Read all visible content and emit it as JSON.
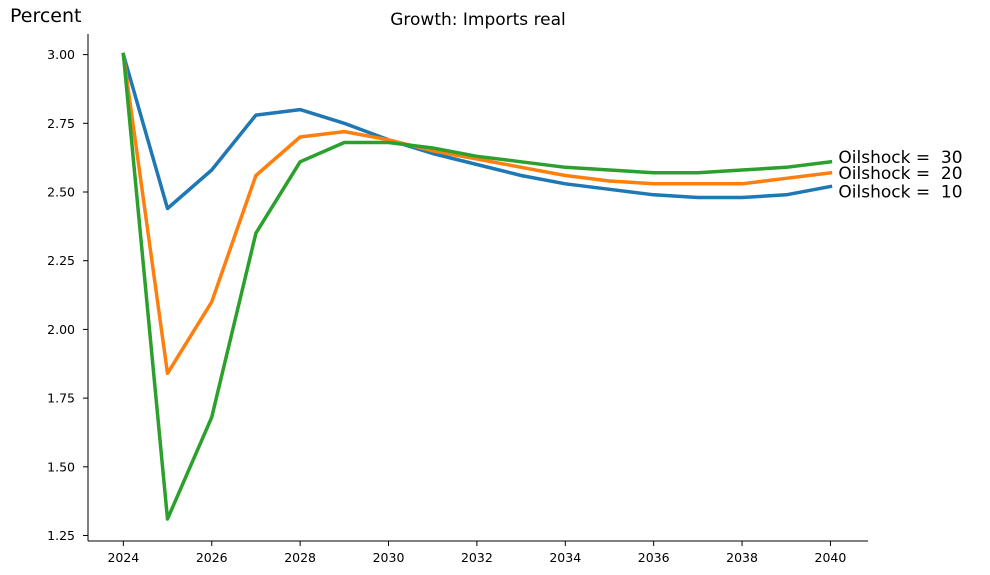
{
  "chart_data": {
    "type": "line",
    "title": "Growth: Imports real",
    "ylabel": "Percent",
    "xlabel": "",
    "xlim": [
      2023.2,
      2040.85
    ],
    "ylim": [
      1.23,
      3.075
    ],
    "xticks": [
      2024,
      2026,
      2028,
      2030,
      2032,
      2034,
      2036,
      2038,
      2040
    ],
    "yticks": [
      1.25,
      1.5,
      1.75,
      2.0,
      2.25,
      2.5,
      2.75,
      3.0
    ],
    "x": [
      2024,
      2025,
      2026,
      2027,
      2028,
      2029,
      2030,
      2031,
      2032,
      2033,
      2034,
      2035,
      2036,
      2037,
      2038,
      2039,
      2040
    ],
    "grid": false,
    "legend": "end-of-line labels",
    "series": [
      {
        "name": "Oilshock =  10",
        "color": "#1f77b4",
        "values": [
          3.0,
          2.44,
          2.58,
          2.78,
          2.8,
          2.75,
          2.69,
          2.64,
          2.6,
          2.56,
          2.53,
          2.51,
          2.49,
          2.48,
          2.48,
          2.49,
          2.52
        ]
      },
      {
        "name": "Oilshock =  20",
        "color": "#ff7f0e",
        "values": [
          3.0,
          1.84,
          2.1,
          2.56,
          2.7,
          2.72,
          2.69,
          2.65,
          2.62,
          2.59,
          2.56,
          2.54,
          2.53,
          2.53,
          2.53,
          2.55,
          2.57
        ]
      },
      {
        "name": "Oilshock =  30",
        "color": "#2ca02c",
        "values": [
          3.0,
          1.31,
          1.68,
          2.35,
          2.61,
          2.68,
          2.68,
          2.66,
          2.63,
          2.61,
          2.59,
          2.58,
          2.57,
          2.57,
          2.58,
          2.59,
          2.61
        ]
      }
    ]
  }
}
